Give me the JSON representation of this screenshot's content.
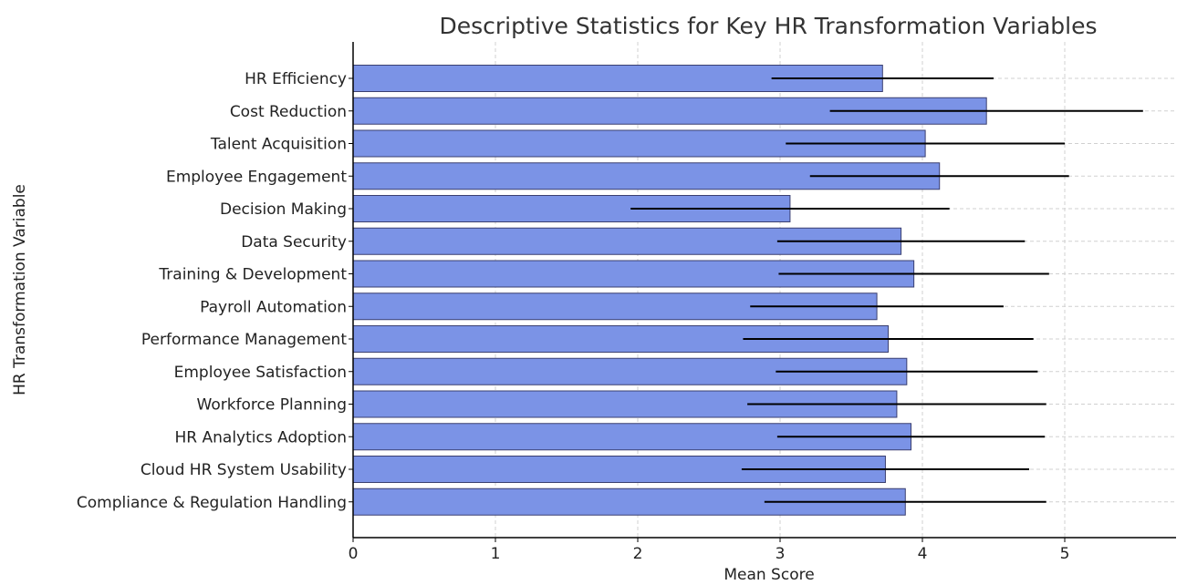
{
  "chart_data": {
    "type": "bar",
    "orientation": "horizontal",
    "title": "Descriptive Statistics for Key HR Transformation Variables",
    "xlabel": "Mean Score",
    "ylabel": "HR Transformation Variable",
    "xlim": [
      0,
      5.8
    ],
    "xticks": [
      "0",
      "1",
      "2",
      "3",
      "4",
      "5"
    ],
    "grid": true,
    "bar_color": "#7b93e6",
    "error_bar_color": "#000000",
    "categories": [
      "HR Efficiency",
      "Cost Reduction",
      "Talent Acquisition",
      "Employee Engagement",
      "Decision Making",
      "Data Security",
      "Training & Development",
      "Payroll Automation",
      "Performance Management",
      "Employee Satisfaction",
      "Workforce Planning",
      "HR Analytics Adoption",
      "Cloud HR System Usability",
      "Compliance & Regulation Handling"
    ],
    "values": [
      3.72,
      4.45,
      4.02,
      4.12,
      3.07,
      3.85,
      3.94,
      3.68,
      3.76,
      3.89,
      3.82,
      3.92,
      3.74,
      3.88
    ],
    "errors": [
      0.78,
      1.1,
      0.98,
      0.91,
      1.12,
      0.87,
      0.95,
      0.89,
      1.02,
      0.92,
      1.05,
      0.94,
      1.01,
      0.99
    ]
  }
}
